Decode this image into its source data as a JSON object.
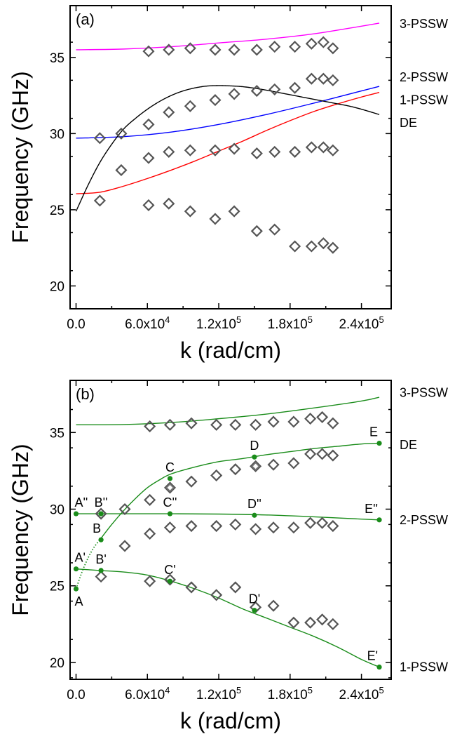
{
  "chart_data": [
    {
      "panel": "(a)",
      "type": "scatter",
      "xlabel": "k (rad/cm)",
      "ylabel": "Frequency (GHz)",
      "xlim": [
        -5000,
        265000
      ],
      "ylim": [
        18.5,
        38.4
      ],
      "x_ticks": [
        {
          "value": 0,
          "mant": "0.0",
          "exp": ""
        },
        {
          "value": 60000,
          "mant": "6.0x10",
          "exp": "4"
        },
        {
          "value": 120000,
          "mant": "1.2x10",
          "exp": "5"
        },
        {
          "value": 180000,
          "mant": "1.8x10",
          "exp": "5"
        },
        {
          "value": 240000,
          "mant": "2.4x10",
          "exp": "5"
        }
      ],
      "y_ticks": [
        20,
        25,
        30,
        35
      ],
      "curves": [
        {
          "label": "3-PSSW",
          "color": "#ff00ff",
          "style": "solid",
          "x": [
            0,
            40000,
            80000,
            120000,
            160000,
            200000,
            240000,
            255000
          ],
          "y": [
            35.5,
            35.55,
            35.7,
            35.95,
            36.2,
            36.55,
            37.05,
            37.25
          ]
        },
        {
          "label": "2-PSSW",
          "color": "#0000ff",
          "style": "solid",
          "x": [
            0,
            40000,
            80000,
            120000,
            160000,
            200000,
            240000,
            255000
          ],
          "y": [
            29.7,
            29.8,
            30.1,
            30.6,
            31.25,
            32.0,
            32.8,
            33.1
          ]
        },
        {
          "label": "1-PSSW",
          "color": "#ff0000",
          "style": "solid",
          "x": [
            0,
            20000,
            40000,
            60000,
            80000,
            100000,
            120000,
            140000,
            160000,
            180000,
            200000,
            220000,
            240000,
            255000
          ],
          "y": [
            26.05,
            26.15,
            26.55,
            27.05,
            27.6,
            28.2,
            28.85,
            29.5,
            30.2,
            30.85,
            31.45,
            31.95,
            32.4,
            32.7
          ]
        },
        {
          "label": "DE",
          "color": "#000000",
          "style": "solid",
          "x": [
            0,
            10000,
            20000,
            30000,
            40000,
            50000,
            60000,
            70000,
            80000,
            90000,
            100000,
            110000,
            120000,
            130000,
            140000,
            150000,
            160000,
            170000,
            180000,
            190000,
            200000,
            210000,
            220000,
            230000,
            240000,
            255000
          ],
          "y": [
            24.9,
            26.6,
            28.1,
            29.3,
            30.3,
            31.0,
            31.6,
            32.1,
            32.5,
            32.8,
            33.0,
            33.12,
            33.15,
            33.13,
            33.08,
            32.98,
            32.85,
            32.7,
            32.55,
            32.4,
            32.25,
            32.1,
            31.95,
            31.8,
            31.6,
            31.25
          ]
        }
      ],
      "markers": [
        {
          "x": 20000,
          "y": 29.7
        },
        {
          "x": 20000,
          "y": 25.6
        },
        {
          "x": 38000,
          "y": 30.0
        },
        {
          "x": 38000,
          "y": 27.6
        },
        {
          "x": 61000,
          "y": 35.4
        },
        {
          "x": 61000,
          "y": 30.6
        },
        {
          "x": 61000,
          "y": 28.4
        },
        {
          "x": 61000,
          "y": 25.3
        },
        {
          "x": 78000,
          "y": 35.5
        },
        {
          "x": 78000,
          "y": 31.4
        },
        {
          "x": 78000,
          "y": 28.8
        },
        {
          "x": 78000,
          "y": 25.4
        },
        {
          "x": 96000,
          "y": 35.6
        },
        {
          "x": 96000,
          "y": 31.8
        },
        {
          "x": 96000,
          "y": 28.9
        },
        {
          "x": 96000,
          "y": 24.9
        },
        {
          "x": 117000,
          "y": 35.5
        },
        {
          "x": 117000,
          "y": 32.2
        },
        {
          "x": 117000,
          "y": 28.9
        },
        {
          "x": 117000,
          "y": 24.4
        },
        {
          "x": 133000,
          "y": 35.5
        },
        {
          "x": 133000,
          "y": 32.6
        },
        {
          "x": 133000,
          "y": 29.0
        },
        {
          "x": 133000,
          "y": 24.9
        },
        {
          "x": 152000,
          "y": 35.5
        },
        {
          "x": 152000,
          "y": 32.8
        },
        {
          "x": 152000,
          "y": 28.7
        },
        {
          "x": 152000,
          "y": 23.6
        },
        {
          "x": 167000,
          "y": 35.7
        },
        {
          "x": 167000,
          "y": 32.9
        },
        {
          "x": 167000,
          "y": 28.8
        },
        {
          "x": 167000,
          "y": 23.7
        },
        {
          "x": 184000,
          "y": 35.7
        },
        {
          "x": 184000,
          "y": 33.0
        },
        {
          "x": 184000,
          "y": 28.8
        },
        {
          "x": 184000,
          "y": 22.6
        },
        {
          "x": 198000,
          "y": 35.9
        },
        {
          "x": 198000,
          "y": 33.6
        },
        {
          "x": 198000,
          "y": 29.1
        },
        {
          "x": 198000,
          "y": 22.6
        },
        {
          "x": 208000,
          "y": 36.0
        },
        {
          "x": 208000,
          "y": 33.6
        },
        {
          "x": 208000,
          "y": 29.1
        },
        {
          "x": 208000,
          "y": 22.8
        },
        {
          "x": 216000,
          "y": 35.6
        },
        {
          "x": 216000,
          "y": 33.5
        },
        {
          "x": 216000,
          "y": 28.9
        },
        {
          "x": 216000,
          "y": 22.5
        }
      ]
    },
    {
      "panel": "(b)",
      "type": "scatter",
      "xlabel": "k (rad/cm)",
      "ylabel": "Frequency (GHz)",
      "xlim": [
        -5000,
        265000
      ],
      "ylim": [
        18.9,
        38.4
      ],
      "x_ticks": [
        {
          "value": 0,
          "mant": "0.0",
          "exp": ""
        },
        {
          "value": 60000,
          "mant": "6.0x10",
          "exp": "4"
        },
        {
          "value": 120000,
          "mant": "1.2x10",
          "exp": "5"
        },
        {
          "value": 180000,
          "mant": "1.8x10",
          "exp": "5"
        },
        {
          "value": 240000,
          "mant": "2.4x10",
          "exp": "5"
        }
      ],
      "y_ticks": [
        20,
        25,
        30,
        35
      ],
      "line_color": "#1a8c1a",
      "curves": [
        {
          "label": "3-PSSW",
          "style": "solid",
          "x": [
            0,
            40000,
            80000,
            120000,
            160000,
            200000,
            240000,
            255000
          ],
          "y": [
            35.5,
            35.52,
            35.65,
            35.9,
            36.2,
            36.6,
            37.05,
            37.3
          ]
        },
        {
          "label": "DE",
          "style": "mixed",
          "dotted_until": 20000,
          "x": [
            0,
            5000,
            10000,
            15000,
            20000,
            30000,
            40000,
            50000,
            60000,
            70000,
            80000,
            100000,
            120000,
            140000,
            160000,
            180000,
            200000,
            220000,
            240000,
            255000
          ],
          "y": [
            24.8,
            25.9,
            26.8,
            27.5,
            28.0,
            29.0,
            29.9,
            30.7,
            31.4,
            31.9,
            32.3,
            32.75,
            33.1,
            33.3,
            33.55,
            33.75,
            33.95,
            34.1,
            34.25,
            34.3
          ]
        },
        {
          "label": "2-PSSW",
          "style": "solid",
          "x": [
            0,
            40000,
            80000,
            120000,
            160000,
            200000,
            240000,
            255000
          ],
          "y": [
            29.7,
            29.7,
            29.7,
            29.68,
            29.62,
            29.5,
            29.35,
            29.3
          ]
        },
        {
          "label": "1-PSSW",
          "style": "solid",
          "x": [
            0,
            20000,
            40000,
            60000,
            80000,
            100000,
            120000,
            140000,
            160000,
            180000,
            200000,
            220000,
            240000,
            255000
          ],
          "y": [
            26.1,
            26.0,
            25.9,
            25.7,
            25.3,
            24.8,
            24.2,
            23.5,
            22.9,
            22.3,
            21.7,
            21.0,
            20.2,
            19.7
          ]
        }
      ],
      "dots": [
        {
          "x": 0,
          "y": 24.8
        },
        {
          "x": 0,
          "y": 26.1
        },
        {
          "x": 0,
          "y": 29.7
        },
        {
          "x": 21000,
          "y": 28.0
        },
        {
          "x": 21000,
          "y": 26.0
        },
        {
          "x": 21000,
          "y": 29.7
        },
        {
          "x": 79000,
          "y": 32.0
        },
        {
          "x": 79000,
          "y": 25.3
        },
        {
          "x": 79000,
          "y": 29.7
        },
        {
          "x": 150000,
          "y": 33.4
        },
        {
          "x": 150000,
          "y": 23.4
        },
        {
          "x": 150000,
          "y": 29.6
        },
        {
          "x": 255000,
          "y": 34.3
        },
        {
          "x": 255000,
          "y": 19.7
        },
        {
          "x": 255000,
          "y": 29.3
        }
      ],
      "point_labels": [
        {
          "text": "A",
          "x": 0,
          "y": 24.8,
          "pos": "below"
        },
        {
          "text": "A'",
          "x": 0,
          "y": 26.1,
          "pos": "above"
        },
        {
          "text": "A''",
          "x": 0,
          "y": 29.7,
          "pos": "above"
        },
        {
          "text": "B",
          "x": 21000,
          "y": 28.0,
          "pos": "above-left"
        },
        {
          "text": "B'",
          "x": 21000,
          "y": 26.0,
          "pos": "above"
        },
        {
          "text": "B''",
          "x": 21000,
          "y": 29.7,
          "pos": "above"
        },
        {
          "text": "C",
          "x": 79000,
          "y": 32.0,
          "pos": "above"
        },
        {
          "text": "C'",
          "x": 79000,
          "y": 25.3,
          "pos": "above"
        },
        {
          "text": "C''",
          "x": 79000,
          "y": 29.7,
          "pos": "above"
        },
        {
          "text": "D",
          "x": 150000,
          "y": 33.4,
          "pos": "above"
        },
        {
          "text": "D'",
          "x": 150000,
          "y": 23.4,
          "pos": "above"
        },
        {
          "text": "D''",
          "x": 150000,
          "y": 29.6,
          "pos": "above"
        },
        {
          "text": "E",
          "x": 255000,
          "y": 34.3,
          "pos": "above-left"
        },
        {
          "text": "E'",
          "x": 255000,
          "y": 19.7,
          "pos": "above-left"
        },
        {
          "text": "E''",
          "x": 255000,
          "y": 29.3,
          "pos": "above-left"
        }
      ],
      "markers": [
        {
          "x": 21000,
          "y": 29.7
        },
        {
          "x": 21000,
          "y": 25.6
        },
        {
          "x": 41000,
          "y": 30.0
        },
        {
          "x": 41000,
          "y": 27.6
        },
        {
          "x": 62000,
          "y": 35.4
        },
        {
          "x": 62000,
          "y": 30.6
        },
        {
          "x": 62000,
          "y": 28.4
        },
        {
          "x": 62000,
          "y": 25.3
        },
        {
          "x": 79000,
          "y": 35.5
        },
        {
          "x": 79000,
          "y": 31.4
        },
        {
          "x": 79000,
          "y": 28.8
        },
        {
          "x": 79000,
          "y": 25.4
        },
        {
          "x": 97000,
          "y": 35.6
        },
        {
          "x": 97000,
          "y": 31.8
        },
        {
          "x": 97000,
          "y": 28.9
        },
        {
          "x": 97000,
          "y": 24.9
        },
        {
          "x": 118000,
          "y": 35.5
        },
        {
          "x": 118000,
          "y": 32.2
        },
        {
          "x": 118000,
          "y": 28.9
        },
        {
          "x": 118000,
          "y": 24.4
        },
        {
          "x": 134000,
          "y": 35.5
        },
        {
          "x": 134000,
          "y": 32.6
        },
        {
          "x": 134000,
          "y": 29.0
        },
        {
          "x": 134000,
          "y": 24.9
        },
        {
          "x": 151000,
          "y": 35.5
        },
        {
          "x": 151000,
          "y": 32.8
        },
        {
          "x": 151000,
          "y": 28.7
        },
        {
          "x": 151000,
          "y": 23.6
        },
        {
          "x": 166000,
          "y": 35.7
        },
        {
          "x": 166000,
          "y": 32.9
        },
        {
          "x": 166000,
          "y": 28.8
        },
        {
          "x": 166000,
          "y": 23.7
        },
        {
          "x": 183000,
          "y": 35.7
        },
        {
          "x": 183000,
          "y": 33.0
        },
        {
          "x": 183000,
          "y": 28.8
        },
        {
          "x": 183000,
          "y": 22.6
        },
        {
          "x": 197000,
          "y": 35.9
        },
        {
          "x": 197000,
          "y": 33.6
        },
        {
          "x": 197000,
          "y": 29.1
        },
        {
          "x": 197000,
          "y": 22.6
        },
        {
          "x": 207000,
          "y": 36.0
        },
        {
          "x": 207000,
          "y": 33.6
        },
        {
          "x": 207000,
          "y": 29.1
        },
        {
          "x": 207000,
          "y": 22.8
        },
        {
          "x": 216000,
          "y": 35.6
        },
        {
          "x": 216000,
          "y": 33.5
        },
        {
          "x": 216000,
          "y": 28.9
        },
        {
          "x": 216000,
          "y": 22.5
        }
      ],
      "small_markers": [
        {
          "x": 79000,
          "y": 31.4
        },
        {
          "x": 151000,
          "y": 32.8
        }
      ]
    }
  ],
  "curve_labels_a": [
    {
      "text": "3-PSSW",
      "y": 37.2
    },
    {
      "text": "2-PSSW",
      "y": 33.7
    },
    {
      "text": "1-PSSW",
      "y": 32.2
    },
    {
      "text": "DE",
      "y": 30.7
    }
  ],
  "curve_labels_b": [
    {
      "text": "3-PSSW",
      "y": 37.6
    },
    {
      "text": "DE",
      "y": 34.2
    },
    {
      "text": "2-PSSW",
      "y": 29.3
    },
    {
      "text": "1-PSSW",
      "y": 19.7
    }
  ]
}
